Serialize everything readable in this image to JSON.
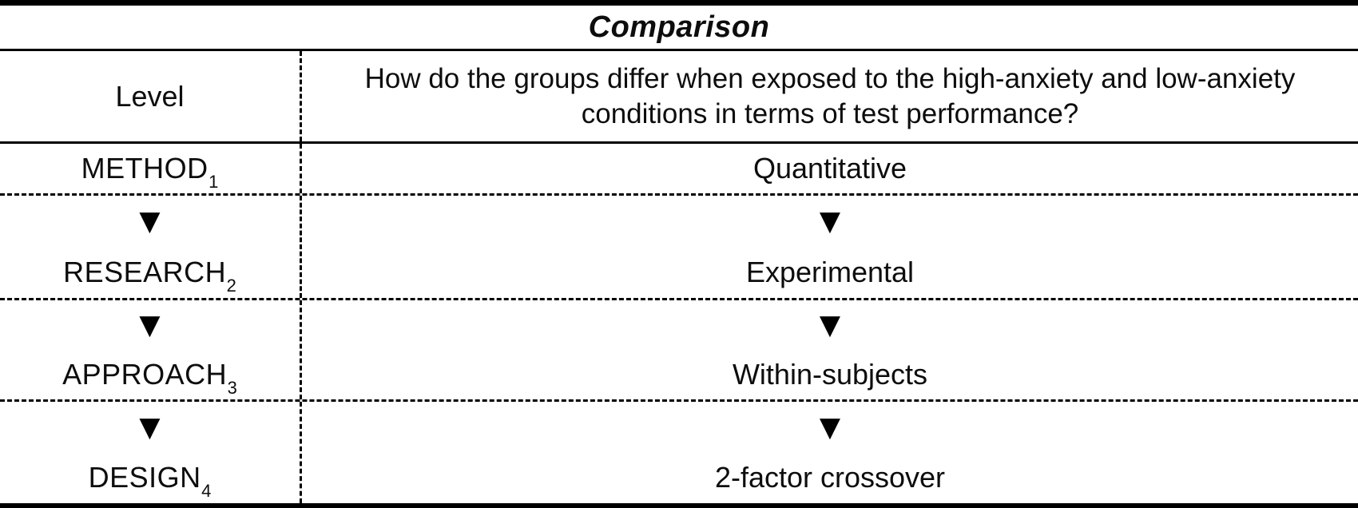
{
  "title": "Comparison",
  "header": {
    "level_label": "Level",
    "question": "How do the groups differ when exposed to the high-anxiety and low-anxiety\nconditions in terms of test performance?"
  },
  "rows": [
    {
      "level": "METHOD",
      "subscript": "1",
      "value": "Quantitative"
    },
    {
      "level": "RESEARCH",
      "subscript": "2",
      "value": "Experimental"
    },
    {
      "level": "APPROACH",
      "subscript": "3",
      "value": "Within-subjects"
    },
    {
      "level": "DESIGN",
      "subscript": "4",
      "value": "2-factor crossover"
    }
  ],
  "icons": {
    "down_arrow": "▼"
  },
  "colors": {
    "text": "#0d0d0d",
    "border": "#000000",
    "background": "#ffffff"
  }
}
